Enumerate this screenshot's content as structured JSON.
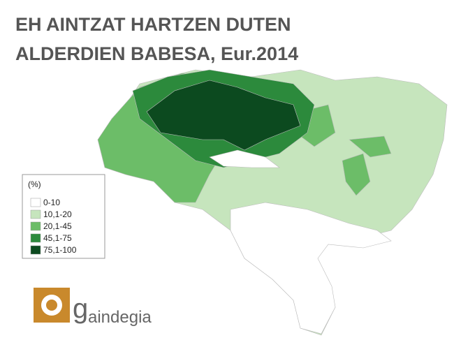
{
  "title": [
    "EH AINTZAT HARTZEN DUTEN",
    "ALDERDIEN BABESA, Eur.2014"
  ],
  "legend": {
    "title": "(%)",
    "items": [
      {
        "label": "0-10",
        "color": "#ffffff"
      },
      {
        "label": "10,1-20",
        "color": "#c6e5bd"
      },
      {
        "label": "20,1-45",
        "color": "#6cbd68"
      },
      {
        "label": "45,1-75",
        "color": "#2c8a3c"
      },
      {
        "label": "75,1-100",
        "color": "#0c4a1f"
      }
    ]
  },
  "logo": {
    "initial": "g",
    "rest": "aindegia"
  }
}
